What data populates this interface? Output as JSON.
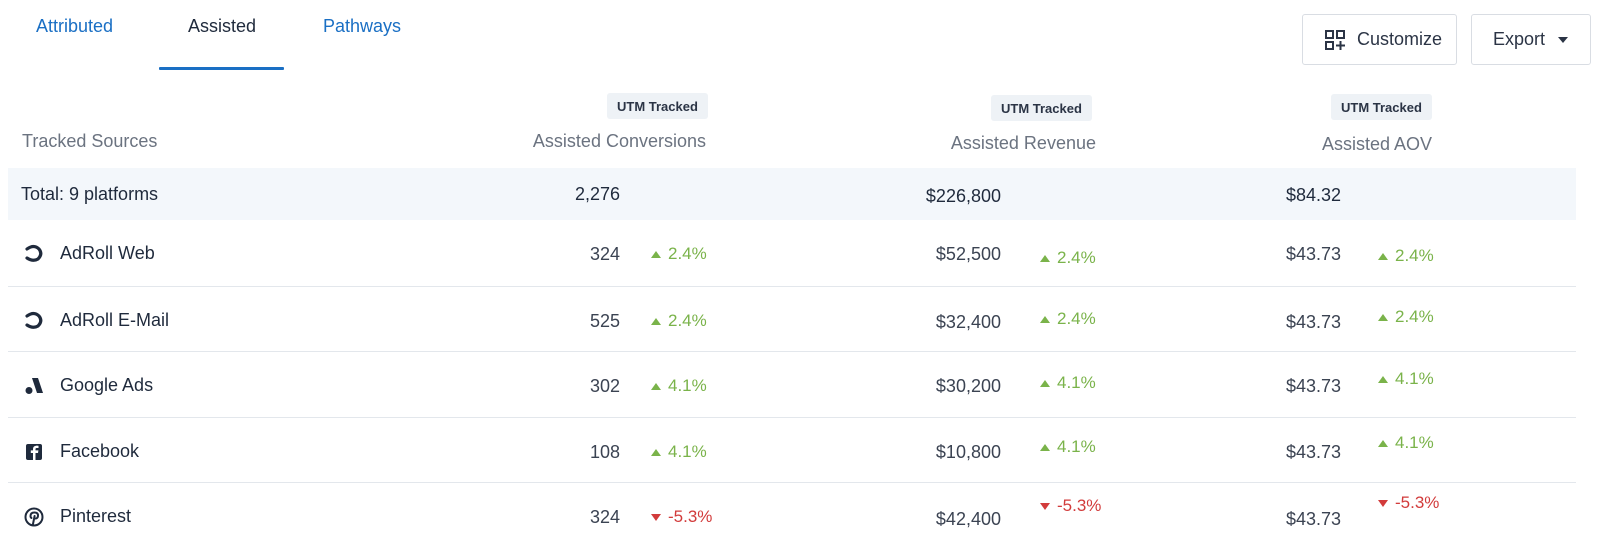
{
  "tabs": [
    {
      "label": "Attributed"
    },
    {
      "label": "Assisted"
    },
    {
      "label": "Pathways"
    }
  ],
  "active_tab": "Assisted",
  "toolbar": {
    "customize_label": "Customize",
    "export_label": "Export"
  },
  "columns": {
    "source_label": "Tracked Sources",
    "conversions": {
      "badge": "UTM Tracked",
      "label": "Assisted Conversions"
    },
    "revenue": {
      "badge": "UTM Tracked",
      "label": "Assisted Revenue"
    },
    "aov": {
      "badge": "UTM Tracked",
      "label": "Assisted AOV"
    }
  },
  "total": {
    "label": "Total: 9 platforms",
    "conversions": "2,276",
    "revenue": "$226,800",
    "aov": "$84.32"
  },
  "rows": [
    {
      "icon": "adroll-icon",
      "name": "AdRoll Web",
      "conversions": "324",
      "conv_delta": "2.4%",
      "conv_dir": "up",
      "revenue": "$52,500",
      "rev_delta": "2.4%",
      "rev_dir": "up",
      "aov": "$43.73",
      "aov_delta": "2.4%",
      "aov_dir": "up"
    },
    {
      "icon": "adroll-icon",
      "name": "AdRoll E-Mail",
      "conversions": "525",
      "conv_delta": "2.4%",
      "conv_dir": "up",
      "revenue": "$32,400",
      "rev_delta": "2.4%",
      "rev_dir": "up",
      "aov": "$43.73",
      "aov_delta": "2.4%",
      "aov_dir": "up"
    },
    {
      "icon": "google-ads-icon",
      "name": "Google Ads",
      "conversions": "302",
      "conv_delta": "4.1%",
      "conv_dir": "up",
      "revenue": "$30,200",
      "rev_delta": "4.1%",
      "rev_dir": "up",
      "aov": "$43.73",
      "aov_delta": "4.1%",
      "aov_dir": "up"
    },
    {
      "icon": "facebook-icon",
      "name": "Facebook",
      "conversions": "108",
      "conv_delta": "4.1%",
      "conv_dir": "up",
      "revenue": "$10,800",
      "rev_delta": "4.1%",
      "rev_dir": "up",
      "aov": "$43.73",
      "aov_delta": "4.1%",
      "aov_dir": "up"
    },
    {
      "icon": "pinterest-icon",
      "name": "Pinterest",
      "conversions": "324",
      "conv_delta": "-5.3%",
      "conv_dir": "down",
      "revenue": "$42,400",
      "rev_delta": "-5.3%",
      "rev_dir": "down",
      "aov": "$43.73",
      "aov_delta": "-5.3%",
      "aov_dir": "down"
    }
  ],
  "colors": {
    "accent": "#1a6fc4",
    "positive": "#7ab34a",
    "negative": "#d23b3b",
    "total_row_bg": "#f3f7fb"
  }
}
